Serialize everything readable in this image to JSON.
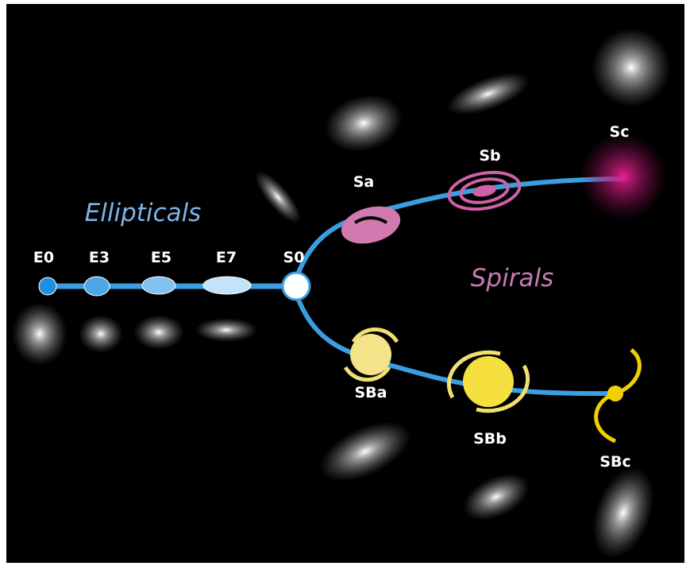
{
  "groups": [
    {
      "label": "Ellipticals"
    },
    {
      "label": "Spirals"
    }
  ],
  "nodes": [
    {
      "label": "E0"
    },
    {
      "label": "E3"
    },
    {
      "label": "E5"
    },
    {
      "label": "E7"
    },
    {
      "label": "S0"
    },
    {
      "label": "Sa"
    },
    {
      "label": "Sb"
    },
    {
      "label": "Sc"
    },
    {
      "label": "SBa"
    },
    {
      "label": "SBb"
    },
    {
      "label": "SBc"
    }
  ]
}
